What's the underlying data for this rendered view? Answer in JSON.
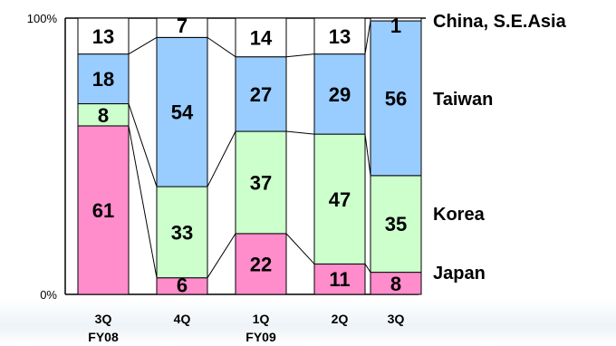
{
  "chart_data": {
    "type": "bar",
    "stacked": true,
    "percent_stacked": true,
    "y_ticks": [
      "0%",
      "100%"
    ],
    "ylim": [
      0,
      100
    ],
    "categories": [
      {
        "line1": "3Q",
        "line2": "FY08"
      },
      {
        "line1": "4Q",
        "line2": ""
      },
      {
        "line1": "1Q",
        "line2": "FY09"
      },
      {
        "line1": "2Q",
        "line2": ""
      },
      {
        "line1": "3Q",
        "line2": ""
      }
    ],
    "series": [
      {
        "name": "Japan",
        "color": "#ff8ccb",
        "values": [
          61,
          6,
          22,
          11,
          8
        ]
      },
      {
        "name": "Korea",
        "color": "#ccffcc",
        "values": [
          8,
          33,
          37,
          47,
          35
        ]
      },
      {
        "name": "Taiwan",
        "color": "#99ccff",
        "values": [
          18,
          54,
          27,
          29,
          56
        ]
      },
      {
        "name": "China, S.E.Asia",
        "color": "#ffffff",
        "values": [
          13,
          7,
          14,
          13,
          1
        ]
      }
    ],
    "legend": "right, labels beside last bar",
    "connector_lines": true,
    "grid": false
  }
}
